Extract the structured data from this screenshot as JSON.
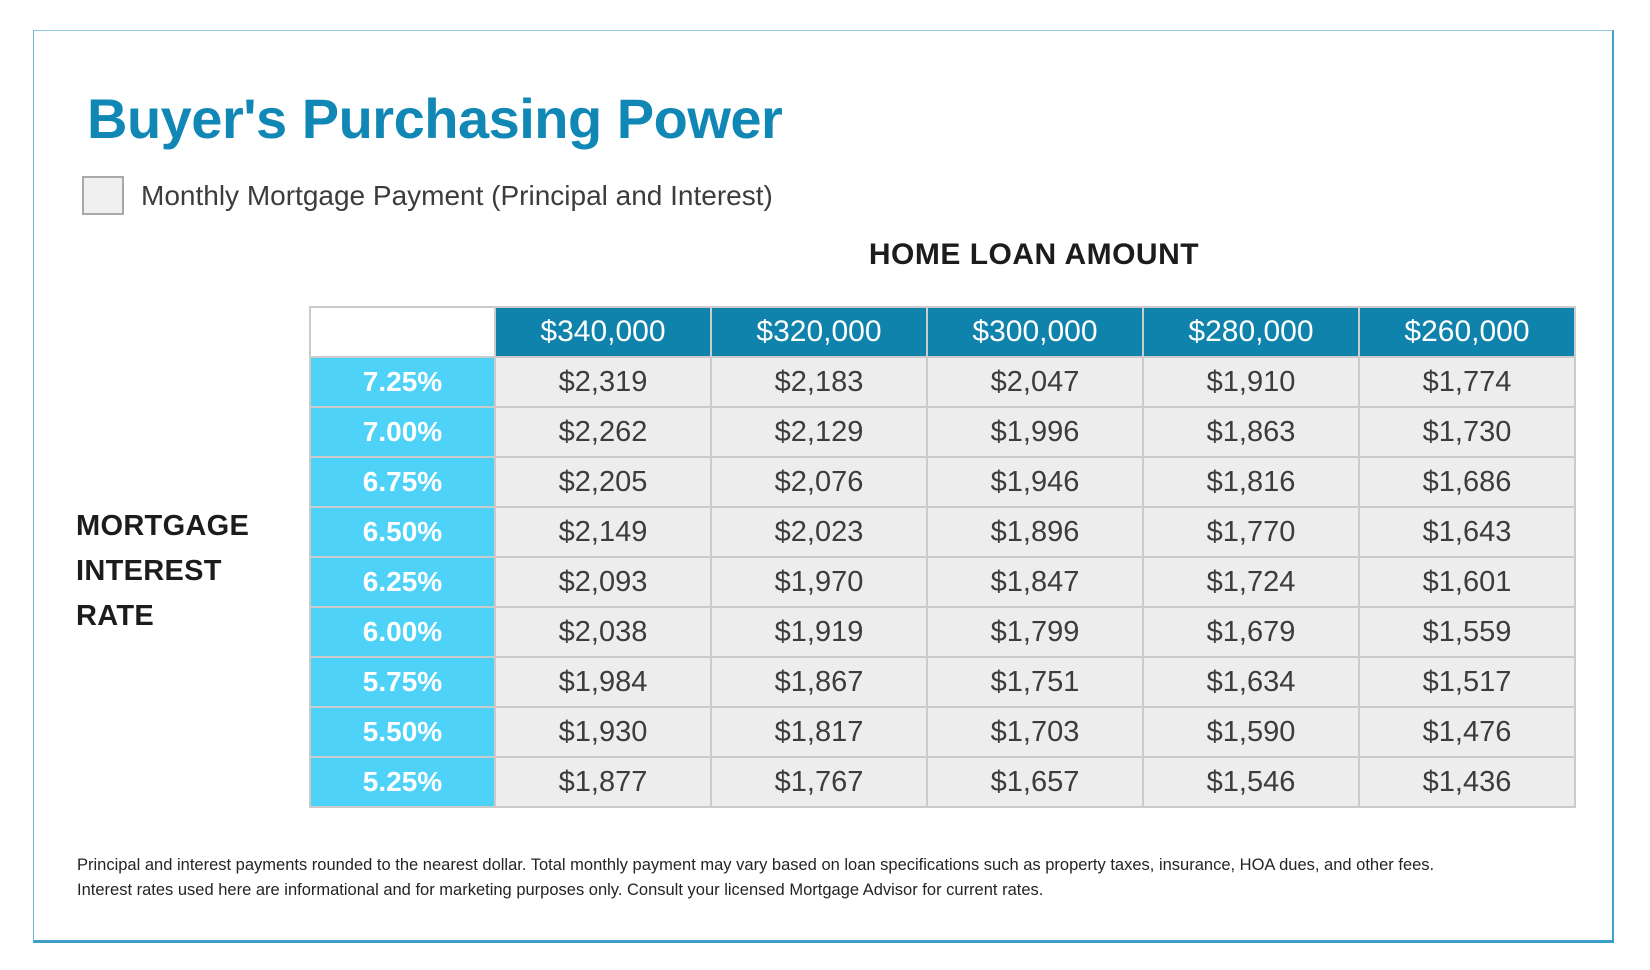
{
  "page": {
    "title": "Buyer's Purchasing Power",
    "legend_label": "Monthly Mortgage Payment (Principal and Interest)",
    "column_group_label": "HOME LOAN AMOUNT",
    "row_group_label_lines": [
      "MORTGAGE",
      "INTEREST",
      "RATE"
    ],
    "footnote_line1": "Principal and interest payments rounded to the nearest dollar. Total monthly payment may vary based on loan specifications such as property taxes, insurance, HOA dues, and other fees.",
    "footnote_line2": "Interest rates used here are informational and for marketing purposes only. Consult your licensed Mortgage Advisor for current rates."
  },
  "colors": {
    "title_teal": "#1187b6",
    "header_teal": "#0f83ab",
    "rate_cyan": "#4fd2f7",
    "cell_gray": "#ededed",
    "card_border_blue": "#3d9dcb"
  },
  "chart_data": {
    "type": "table",
    "title": "Buyer's Purchasing Power",
    "subtitle": "Monthly Mortgage Payment (Principal and Interest)",
    "column_group": "HOME LOAN AMOUNT",
    "row_group": "MORTGAGE INTEREST RATE",
    "columns": [
      "$340,000",
      "$320,000",
      "$300,000",
      "$280,000",
      "$260,000"
    ],
    "rows": [
      {
        "rate": "7.25%",
        "values": [
          "$2,319",
          "$2,183",
          "$2,047",
          "$1,910",
          "$1,774"
        ]
      },
      {
        "rate": "7.00%",
        "values": [
          "$2,262",
          "$2,129",
          "$1,996",
          "$1,863",
          "$1,730"
        ]
      },
      {
        "rate": "6.75%",
        "values": [
          "$2,205",
          "$2,076",
          "$1,946",
          "$1,816",
          "$1,686"
        ]
      },
      {
        "rate": "6.50%",
        "values": [
          "$2,149",
          "$2,023",
          "$1,896",
          "$1,770",
          "$1,643"
        ]
      },
      {
        "rate": "6.25%",
        "values": [
          "$2,093",
          "$1,970",
          "$1,847",
          "$1,724",
          "$1,601"
        ]
      },
      {
        "rate": "6.00%",
        "values": [
          "$2,038",
          "$1,919",
          "$1,799",
          "$1,679",
          "$1,559"
        ]
      },
      {
        "rate": "5.75%",
        "values": [
          "$1,984",
          "$1,867",
          "$1,751",
          "$1,634",
          "$1,517"
        ]
      },
      {
        "rate": "5.50%",
        "values": [
          "$1,930",
          "$1,817",
          "$1,703",
          "$1,590",
          "$1,476"
        ]
      },
      {
        "rate": "5.25%",
        "values": [
          "$1,877",
          "$1,767",
          "$1,657",
          "$1,546",
          "$1,436"
        ]
      }
    ]
  }
}
